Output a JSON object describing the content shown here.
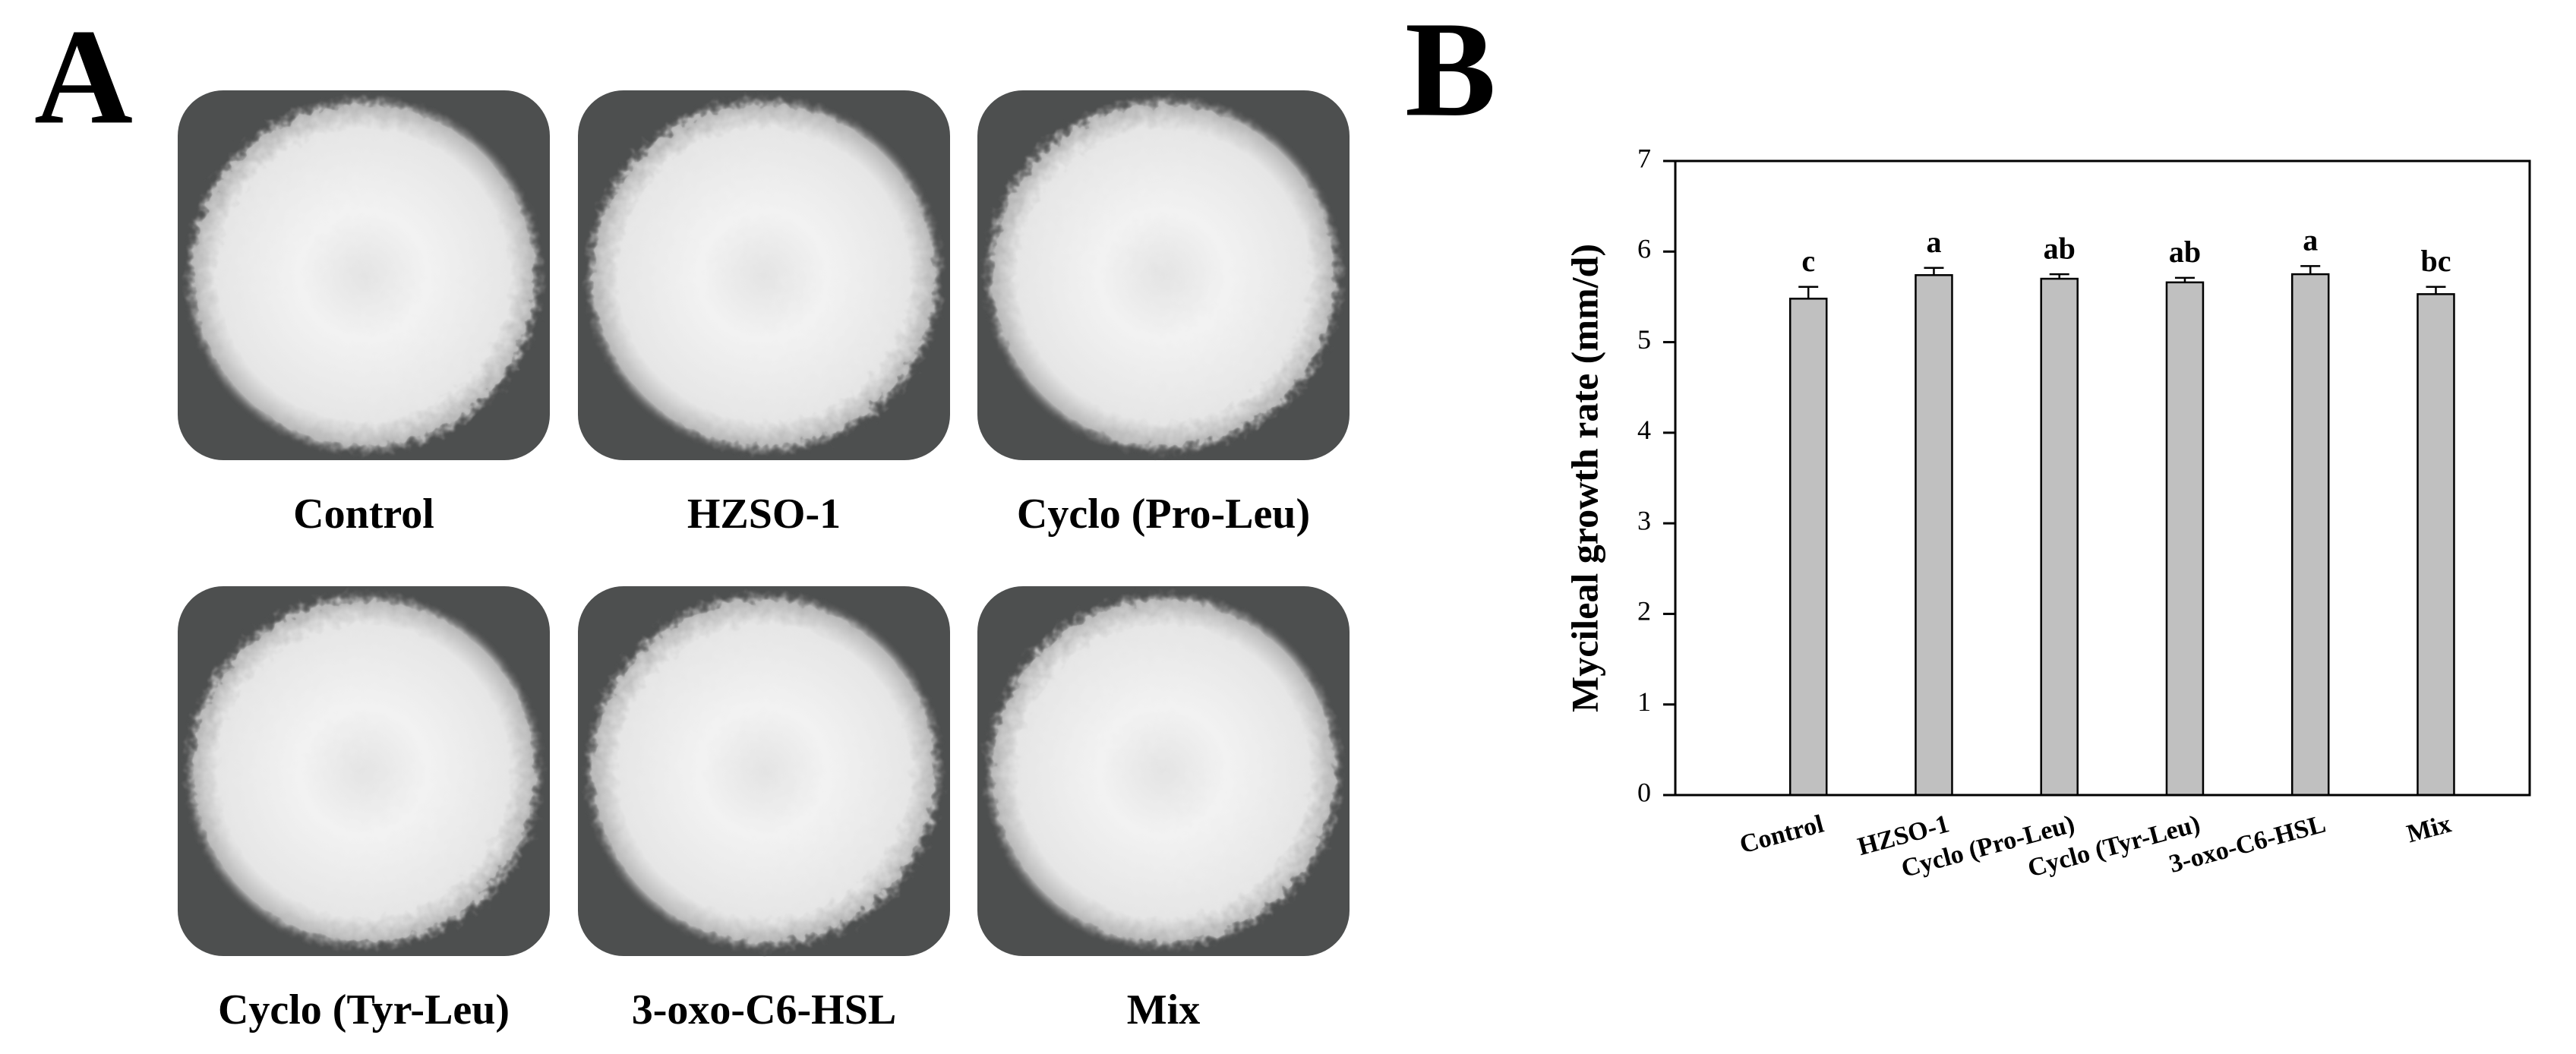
{
  "panel_a": {
    "label": "A",
    "captions": [
      "Control",
      "HZSO-1",
      "Cyclo (Pro-Leu)",
      "Cyclo (Tyr-Leu)",
      "3-oxo-C6-HSL",
      "Mix"
    ]
  },
  "chart_data": {
    "panel_label": "B",
    "type": "bar",
    "y_label": "Mycileal growth rate (mm/d)",
    "categories": [
      "Control",
      "HZSO-1",
      "Cyclo (Pro-Leu)",
      "Cyclo (Tyr-Leu)",
      "3-oxo-C6-HSL",
      "Mix"
    ],
    "values": [
      5.48,
      5.74,
      5.7,
      5.66,
      5.75,
      5.53
    ],
    "errors": [
      0.13,
      0.08,
      0.05,
      0.05,
      0.09,
      0.08
    ],
    "annotations": [
      "c",
      "a",
      "ab",
      "ab",
      "a",
      "bc"
    ],
    "color": "#c0c0c0",
    "ylim": [
      0,
      7
    ],
    "yticks": [
      0,
      1,
      2,
      3,
      4,
      5,
      6,
      7
    ],
    "grid": false
  }
}
